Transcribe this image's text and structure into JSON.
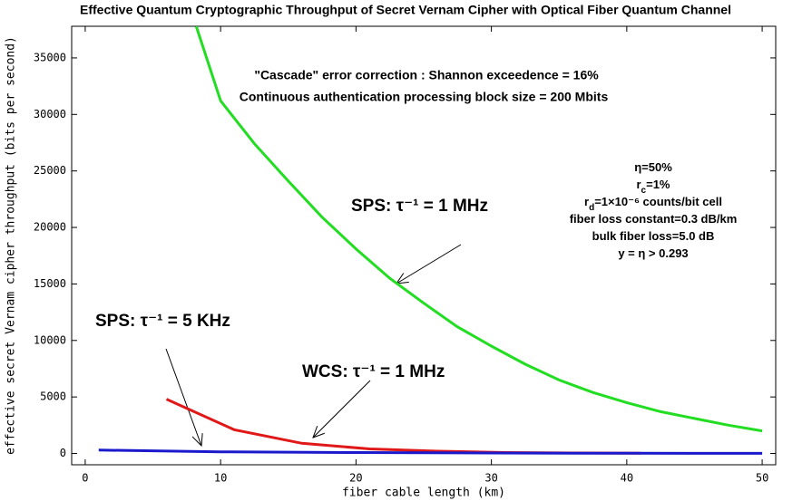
{
  "chart_data": {
    "type": "line",
    "title": "Effective Quantum Cryptographic Throughput of Secret Vernam Cipher with Optical Fiber Quantum Channel",
    "x_label": "fiber cable length (km)",
    "y_label": "effective secret Vernam cipher throughput (bits per second)",
    "xlim": [
      -1,
      51
    ],
    "ylim": [
      -1000,
      37800
    ],
    "xticks": [
      0,
      10,
      20,
      30,
      40,
      50
    ],
    "yticks": [
      0,
      5000,
      10000,
      15000,
      20000,
      25000,
      30000,
      35000
    ],
    "series": [
      {
        "name": "SPS: τ⁻¹ = 1 MHz",
        "color": "#22dd22",
        "x": [
          8.2,
          10,
          12.5,
          15,
          17.5,
          20,
          22.5,
          25,
          27.5,
          30,
          32.5,
          35,
          37.5,
          40,
          42.5,
          45,
          47.5,
          50
        ],
        "values": [
          37800,
          31200,
          27400,
          24100,
          20900,
          18100,
          15500,
          13300,
          11200,
          9500,
          7900,
          6500,
          5400,
          4500,
          3700,
          3100,
          2500,
          2000
        ]
      },
      {
        "name": "WCS: τ⁻¹ = 1 MHz",
        "color": "#e01818",
        "x": [
          6,
          11,
          16,
          21,
          26,
          31,
          36,
          41
        ],
        "values": [
          4800,
          2100,
          900,
          400,
          200,
          80,
          40,
          20
        ]
      },
      {
        "name": "SPS: τ⁻¹ = 5 KHz",
        "color": "#1a1acc",
        "x": [
          1,
          10,
          20,
          30,
          40,
          50
        ],
        "values": [
          300,
          150,
          80,
          40,
          20,
          10
        ]
      }
    ],
    "notes": [
      "\"Cascade\" error  correction  : Shannon exceedence = 16%",
      "Continuous  authentication  processing  block size = 200 Mbits"
    ],
    "parameters": [
      {
        "parts": [
          "η=50%"
        ],
        "sub": []
      },
      {
        "parts": [
          "r",
          "c",
          "=1%"
        ],
        "sub": [
          1
        ]
      },
      {
        "parts": [
          "r",
          "d",
          "=1×10⁻⁶ counts/bit cell"
        ],
        "sub": [
          1
        ]
      },
      {
        "parts": [
          "fiber loss constant=0.3 dB/km"
        ],
        "sub": []
      },
      {
        "parts": [
          "bulk fiber loss=5.0 dB"
        ],
        "sub": []
      },
      {
        "parts": [
          "y = η > 0.293"
        ],
        "sub": []
      }
    ]
  }
}
